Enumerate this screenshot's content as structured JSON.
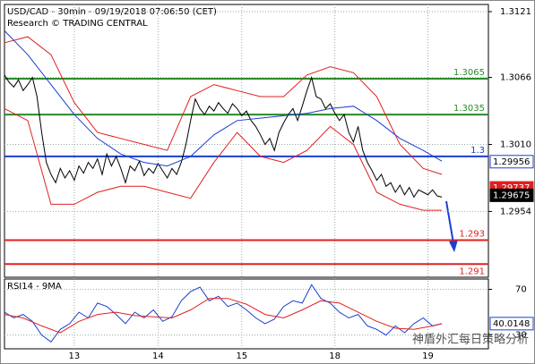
{
  "chart_data": {
    "type": "line",
    "title": "USD/CAD - 30min - 09/19/2018 07:06:50 (CET)",
    "subtitle": "Research © TRADING CENTRAL",
    "xlim": [
      0,
      104
    ],
    "xticks": [
      {
        "value": 15,
        "label": "13"
      },
      {
        "value": 33,
        "label": "14"
      },
      {
        "value": 51,
        "label": "15"
      },
      {
        "value": 71,
        "label": "18"
      },
      {
        "value": 91,
        "label": "19"
      }
    ],
    "ylim": [
      1.2899,
      1.3127
    ],
    "yticks": [
      1.3121,
      1.3066,
      {
        "value": 1.301,
        "label": "1.3010"
      },
      1.2954
    ],
    "series": [
      {
        "color": "#000000",
        "x": [
          0,
          1,
          2,
          3,
          4,
          5,
          6,
          7,
          8,
          9,
          10,
          11,
          12,
          13,
          14,
          15,
          16,
          17,
          18,
          19,
          20,
          21,
          22,
          23,
          24,
          25,
          26,
          27,
          28,
          29,
          30,
          31,
          32,
          33,
          34,
          35,
          36,
          37,
          38,
          39,
          40,
          41,
          42,
          43,
          44,
          45,
          46,
          47,
          48,
          49,
          50,
          51,
          52,
          53,
          54,
          55,
          56,
          57,
          58,
          59,
          60,
          61,
          62,
          63,
          64,
          65,
          66,
          67,
          68,
          69,
          70,
          71,
          72,
          73,
          74,
          75,
          76,
          77,
          78,
          79,
          80,
          81,
          82,
          83,
          84,
          85,
          86,
          87,
          88,
          89,
          90,
          91,
          92,
          93,
          94
        ],
        "values": [
          1.3068,
          1.3062,
          1.3058,
          1.3064,
          1.3055,
          1.306,
          1.3066,
          1.305,
          1.302,
          1.2995,
          1.2985,
          1.2978,
          1.299,
          1.2982,
          1.2988,
          1.298,
          1.2992,
          1.2986,
          1.2995,
          1.299,
          1.2998,
          1.2985,
          1.3002,
          1.2992,
          1.3,
          1.299,
          1.2978,
          1.2992,
          1.2988,
          1.2996,
          1.2984,
          1.299,
          1.2986,
          1.2994,
          1.2988,
          1.2982,
          1.299,
          1.2985,
          1.2995,
          1.301,
          1.303,
          1.3048,
          1.304,
          1.3035,
          1.3042,
          1.3038,
          1.3045,
          1.304,
          1.3036,
          1.3044,
          1.304,
          1.3034,
          1.3038,
          1.303,
          1.3025,
          1.3018,
          1.301,
          1.3015,
          1.3005,
          1.302,
          1.3028,
          1.3035,
          1.304,
          1.303,
          1.3042,
          1.3055,
          1.3066,
          1.305,
          1.3048,
          1.304,
          1.3044,
          1.3036,
          1.303,
          1.3035,
          1.302,
          1.3012,
          1.3025,
          1.3005,
          1.2995,
          1.2988,
          1.298,
          1.2985,
          1.2975,
          1.2978,
          1.297,
          1.2976,
          1.2968,
          1.2974,
          1.2966,
          1.2972,
          1.297,
          1.2968,
          1.2972,
          1.2967,
          1.2966
        ]
      },
      {
        "color": "#e02020",
        "x": [
          0,
          5,
          10,
          15,
          20,
          25,
          30,
          35,
          40,
          45,
          50,
          55,
          60,
          65,
          70,
          75,
          80,
          85,
          90,
          94
        ],
        "values": [
          1.3095,
          1.31,
          1.3085,
          1.3045,
          1.302,
          1.3015,
          1.301,
          1.3005,
          1.305,
          1.306,
          1.3055,
          1.305,
          1.305,
          1.3068,
          1.3075,
          1.307,
          1.305,
          1.301,
          1.299,
          1.2985
        ]
      },
      {
        "color": "#e02020",
        "x": [
          0,
          5,
          10,
          15,
          20,
          25,
          30,
          35,
          40,
          45,
          50,
          55,
          60,
          65,
          70,
          75,
          80,
          85,
          90,
          94
        ],
        "values": [
          1.304,
          1.303,
          1.296,
          1.296,
          1.297,
          1.2975,
          1.2975,
          1.297,
          1.2965,
          1.2995,
          1.302,
          1.3,
          1.2995,
          1.3005,
          1.3025,
          1.301,
          1.297,
          1.296,
          1.2955,
          1.2955
        ]
      },
      {
        "color": "#1a3fd0",
        "x": [
          0,
          5,
          10,
          15,
          20,
          25,
          30,
          35,
          40,
          45,
          50,
          55,
          60,
          65,
          70,
          75,
          80,
          85,
          90,
          94
        ],
        "values": [
          1.3105,
          1.3085,
          1.306,
          1.3035,
          1.3015,
          1.3002,
          1.2995,
          1.2992,
          1.3,
          1.3018,
          1.303,
          1.3032,
          1.3034,
          1.3036,
          1.304,
          1.3042,
          1.303,
          1.3015,
          1.3005,
          1.2996
        ]
      }
    ],
    "levels": [
      {
        "value": 1.3065,
        "color": "#2a8a2a"
      },
      {
        "value": 1.3035,
        "color": "#2a8a2a"
      },
      {
        "value": 1.3,
        "color": "#1a3fd0"
      },
      {
        "value": 1.293,
        "color": "#e02020"
      },
      {
        "value": 1.291,
        "color": "#e02020"
      }
    ],
    "price_tags": [
      {
        "value": 1.29956,
        "color": "#1a3fd0"
      },
      {
        "value": 1.29737,
        "color": "#e02020"
      },
      {
        "value": 1.29675,
        "color": "#000000"
      }
    ],
    "rsi": {
      "title": "RSI14 - 9MA",
      "ylim": [
        18,
        79
      ],
      "yticks": [
        70,
        30
      ],
      "series": [
        {
          "color": "#1a3fd0",
          "x": [
            0,
            2,
            4,
            6,
            8,
            10,
            12,
            14,
            16,
            18,
            20,
            22,
            24,
            26,
            28,
            30,
            32,
            34,
            36,
            38,
            40,
            42,
            44,
            46,
            48,
            50,
            52,
            54,
            56,
            58,
            60,
            62,
            64,
            66,
            68,
            70,
            72,
            74,
            76,
            78,
            80,
            82,
            84,
            86,
            88,
            90,
            92,
            94
          ],
          "values": [
            50,
            45,
            48,
            42,
            30,
            24,
            35,
            40,
            50,
            45,
            58,
            55,
            48,
            40,
            50,
            45,
            52,
            42,
            46,
            60,
            68,
            72,
            60,
            64,
            55,
            58,
            52,
            45,
            40,
            44,
            55,
            60,
            58,
            74,
            62,
            58,
            50,
            45,
            48,
            38,
            35,
            30,
            38,
            32,
            40,
            45,
            38,
            40
          ]
        },
        {
          "color": "#e02020",
          "x": [
            0,
            4,
            8,
            12,
            16,
            20,
            24,
            28,
            32,
            36,
            40,
            44,
            48,
            52,
            56,
            60,
            64,
            68,
            72,
            76,
            80,
            84,
            88,
            92,
            94
          ],
          "values": [
            48,
            45,
            38,
            32,
            42,
            48,
            50,
            47,
            46,
            45,
            52,
            62,
            62,
            57,
            48,
            45,
            52,
            60,
            58,
            50,
            42,
            36,
            35,
            38,
            40
          ]
        }
      ],
      "tag": {
        "value": 40.0148,
        "color": "#1a3fd0"
      }
    },
    "watermark": "神盾外汇每日策略分析"
  }
}
